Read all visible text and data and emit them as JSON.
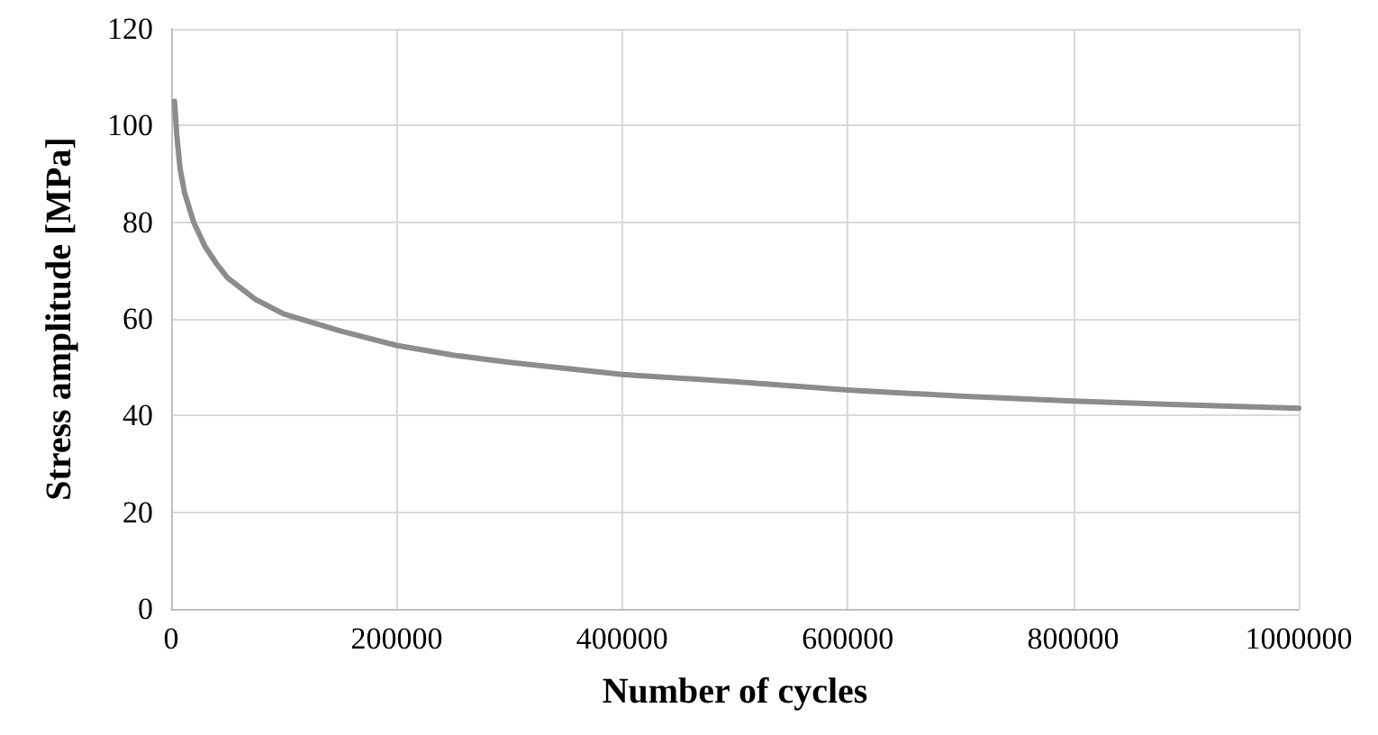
{
  "chart_data": {
    "type": "line",
    "xlabel": "Number of cycles",
    "ylabel": "Stress amplitude [MPa]",
    "x": [
      3000,
      5000,
      8000,
      12000,
      20000,
      30000,
      40000,
      50000,
      75000,
      100000,
      150000,
      200000,
      250000,
      300000,
      400000,
      500000,
      600000,
      700000,
      800000,
      900000,
      1000000
    ],
    "series": [
      {
        "color": "#8c8c8c",
        "values": [
          105,
          98,
          91,
          86,
          80,
          75,
          71.5,
          68.5,
          64,
          61,
          57.5,
          54.5,
          52.5,
          51,
          48.5,
          47,
          45.3,
          44,
          43,
          42.2,
          41.5
        ]
      }
    ],
    "xlim": [
      0,
      1000000
    ],
    "xticks": [
      0,
      200000,
      400000,
      600000,
      800000,
      1000000
    ],
    "ylim": [
      0,
      120
    ],
    "yticks": [
      0,
      20,
      40,
      60,
      80,
      100,
      120
    ],
    "grid": true,
    "marker": "none",
    "line_style": "solid"
  }
}
